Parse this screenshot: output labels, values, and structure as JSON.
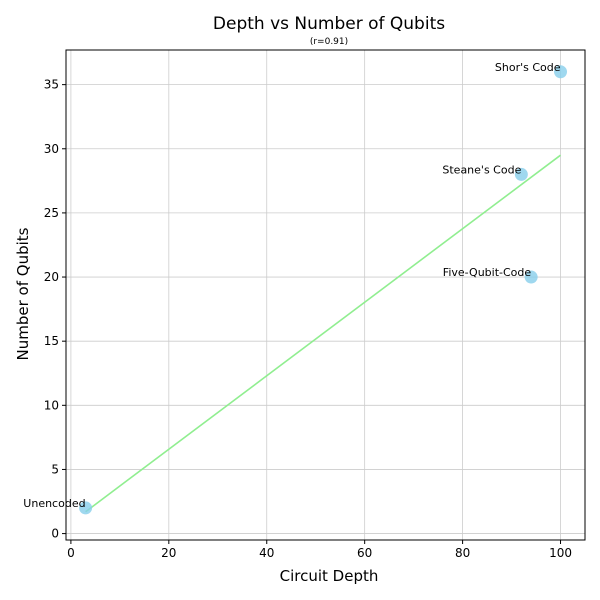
{
  "chart_data": {
    "type": "scatter",
    "title": "Depth vs Number of Qubits",
    "subtitle": "(r=0.91)",
    "xlabel": "Circuit Depth",
    "ylabel": "Number of Qubits",
    "xlim": [
      -1,
      105
    ],
    "ylim": [
      -0.5,
      37.7
    ],
    "xticks": [
      0,
      20,
      40,
      60,
      80,
      100
    ],
    "yticks": [
      0,
      5,
      10,
      15,
      20,
      25,
      30,
      35
    ],
    "grid": true,
    "points": [
      {
        "label": "Shor's Code",
        "x": 100,
        "y": 36
      },
      {
        "label": "Steane's Code",
        "x": 92,
        "y": 28
      },
      {
        "label": "Five-Qubit-Code",
        "x": 94,
        "y": 20
      },
      {
        "label": "Unencoded",
        "x": 3,
        "y": 2
      }
    ],
    "trendline": {
      "x": [
        3,
        100
      ],
      "y": [
        1.7,
        29.5
      ]
    },
    "colors": {
      "points": "#87ceeb",
      "trendline": "#90ee90"
    }
  }
}
